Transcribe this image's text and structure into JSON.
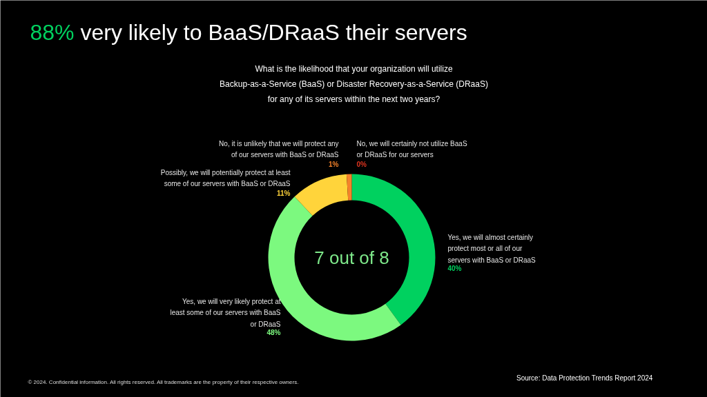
{
  "chart_data": {
    "type": "donut",
    "title": "88% very likely to BaaS/DRaaS their servers",
    "subtitle": "What is the likelihood that your organization will utilize Backup-as-a-Service (BaaS) or Disaster Recovery-as-a-Service (DRaaS) for any of its servers within the next two years?",
    "categories": [
      "Yes, we will almost certainly protect most or all of our servers with BaaS or DRaaS",
      "Yes, we will very likely protect at least some of our servers with BaaS or DRaaS",
      "Possibly, we will potentially protect at least some of our servers with BaaS or DRaaS",
      "No, it is unlikely that we will protect any of our servers with BaaS or DRaaS",
      "No, we will certainly not utilize BaaS or DRaaS for our servers"
    ],
    "values": [
      40,
      48,
      11,
      1,
      0
    ],
    "colors": [
      "#00d15f",
      "#7cf97f",
      "#ffd43b",
      "#f5822a",
      "#e0341f"
    ],
    "value_labels": [
      "40%",
      "48%",
      "11%",
      "1%",
      "0%"
    ],
    "annotations": [
      "7 out of 8",
      "© 2024. Confidential information. All rights reserved. All trademarks are the property of their respective owners.",
      "Source: Data Protection Trends Report 2024"
    ]
  }
}
